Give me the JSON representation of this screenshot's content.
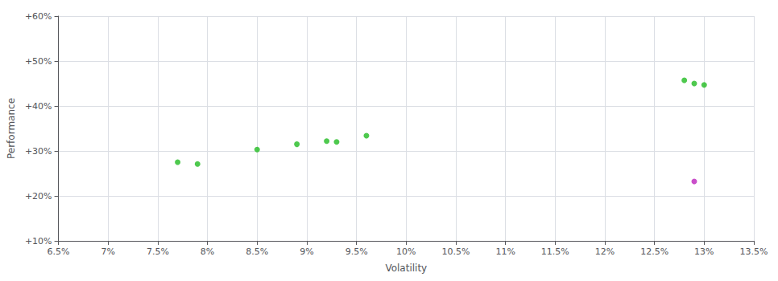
{
  "chart_data": {
    "type": "scatter",
    "xlabel": "Volatility",
    "ylabel": "Performance",
    "xlim": [
      0.065,
      0.135
    ],
    "ylim": [
      0.1,
      0.6
    ],
    "xticks": [
      {
        "value": 0.065,
        "label": "6.5%"
      },
      {
        "value": 0.07,
        "label": "7%"
      },
      {
        "value": 0.075,
        "label": "7.5%"
      },
      {
        "value": 0.08,
        "label": "8%"
      },
      {
        "value": 0.085,
        "label": "8.5%"
      },
      {
        "value": 0.09,
        "label": "9%"
      },
      {
        "value": 0.095,
        "label": "9.5%"
      },
      {
        "value": 0.1,
        "label": "10%"
      },
      {
        "value": 0.105,
        "label": "10.5%"
      },
      {
        "value": 0.11,
        "label": "11%"
      },
      {
        "value": 0.115,
        "label": "11.5%"
      },
      {
        "value": 0.12,
        "label": "12%"
      },
      {
        "value": 0.125,
        "label": "12.5%"
      },
      {
        "value": 0.13,
        "label": "13%"
      },
      {
        "value": 0.135,
        "label": "13.5%"
      }
    ],
    "yticks": [
      {
        "value": 0.1,
        "label": "+10%"
      },
      {
        "value": 0.2,
        "label": "+20%"
      },
      {
        "value": 0.3,
        "label": "+30%"
      },
      {
        "value": 0.4,
        "label": "+40%"
      },
      {
        "value": 0.5,
        "label": "+50%"
      },
      {
        "value": 0.6,
        "label": "+60%"
      }
    ],
    "grid": true,
    "series": [
      {
        "color": "#22bb22",
        "x": [
          0.077,
          0.079,
          0.085,
          0.089,
          0.092,
          0.093,
          0.096,
          0.128,
          0.129,
          0.13
        ],
        "values": [
          0.275,
          0.271,
          0.303,
          0.315,
          0.322,
          0.32,
          0.334,
          0.457,
          0.45,
          0.447
        ]
      },
      {
        "color": "#bb22bb",
        "x": [
          0.129
        ],
        "values": [
          0.232
        ]
      }
    ]
  }
}
